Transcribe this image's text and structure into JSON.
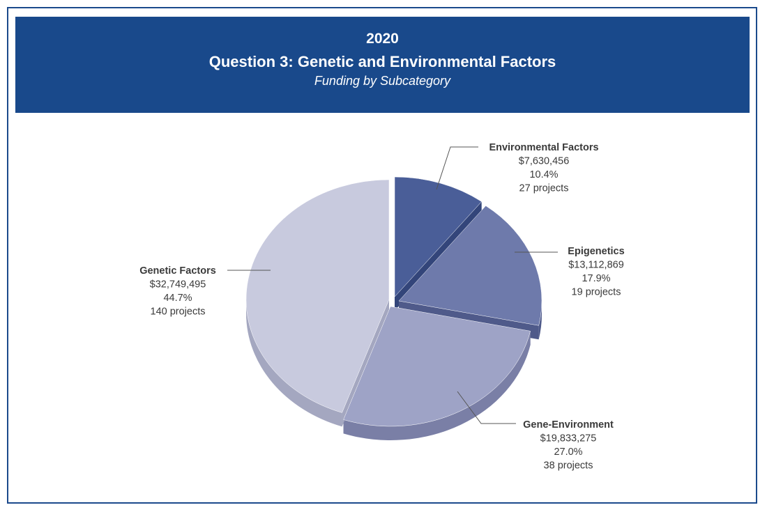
{
  "header": {
    "year": "2020",
    "title": "Question 3: Genetic and Environmental Factors",
    "subtitle": "Funding by Subcategory"
  },
  "colors": {
    "banner": "#19498b",
    "frame": "#1b4a8c"
  },
  "chart_data": {
    "type": "pie",
    "style": "3d-exploded",
    "slices": [
      {
        "name": "Environmental Factors",
        "amount": "$7,630,456",
        "value": 7630456,
        "percent": "10.4%",
        "percent_value": 10.4,
        "projects": "27 projects",
        "color": "#4a5e98",
        "side_color": "#33457a"
      },
      {
        "name": "Epigenetics",
        "amount": "$13,112,869",
        "value": 13112869,
        "percent": "17.9%",
        "percent_value": 17.9,
        "projects": "19 projects",
        "color": "#6e7aab",
        "side_color": "#4f5a8a"
      },
      {
        "name": "Gene-Environment",
        "amount": "$19,833,275",
        "value": 19833275,
        "percent": "27.0%",
        "percent_value": 27.0,
        "projects": "38 projects",
        "color": "#9ea3c6",
        "side_color": "#7a7fa6"
      },
      {
        "name": "Genetic Factors",
        "amount": "$32,749,495",
        "value": 32749495,
        "percent": "44.7%",
        "percent_value": 44.7,
        "projects": "140 projects",
        "color": "#c8cade",
        "side_color": "#a4a7c0"
      }
    ]
  }
}
